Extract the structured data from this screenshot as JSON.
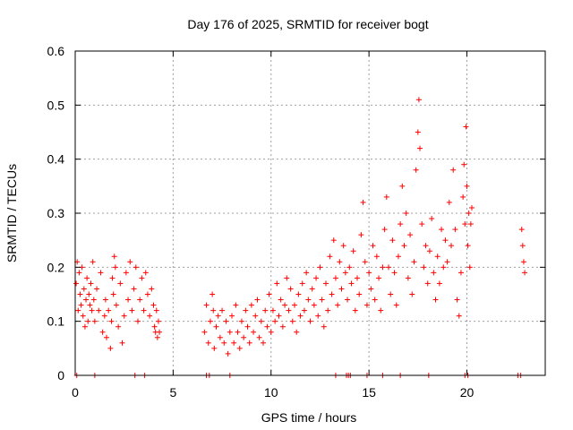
{
  "chart_data": {
    "type": "scatter",
    "title": "Day 176 of 2025, SRMTID for receiver bogt",
    "xlabel": "GPS time / hours",
    "ylabel": "SRMTID / TECUs",
    "xlim": [
      0,
      24
    ],
    "ylim": [
      0,
      0.6
    ],
    "xticks": [
      0,
      5,
      10,
      15,
      20
    ],
    "xtick_labels": [
      "0",
      "5",
      "10",
      "15",
      "20"
    ],
    "yticks": [
      0,
      0.1,
      0.2,
      0.3,
      0.4,
      0.5,
      0.6
    ],
    "ytick_labels": [
      "0",
      "0.1",
      "0.2",
      "0.3",
      "0.4",
      "0.5",
      "0.6"
    ],
    "grid": true,
    "marker": "+",
    "color": "#ff0000",
    "series": [
      {
        "name": "SRMTID",
        "points": [
          [
            0.05,
            0.17
          ],
          [
            0.1,
            0.21
          ],
          [
            0.15,
            0.12
          ],
          [
            0.2,
            0.19
          ],
          [
            0.25,
            0.15
          ],
          [
            0.3,
            0.13
          ],
          [
            0.35,
            0.2
          ],
          [
            0.4,
            0.11
          ],
          [
            0.45,
            0.16
          ],
          [
            0.5,
            0.09
          ],
          [
            0.55,
            0.14
          ],
          [
            0.6,
            0.18
          ],
          [
            0.65,
            0.1
          ],
          [
            0.7,
            0.15
          ],
          [
            0.75,
            0.13
          ],
          [
            0.8,
            0.17
          ],
          [
            0.85,
            0.12
          ],
          [
            0.9,
            0.21
          ],
          [
            0.95,
            0.14
          ],
          [
            1.0,
            0.1
          ],
          [
            1.1,
            0.16
          ],
          [
            1.2,
            0.12
          ],
          [
            1.3,
            0.19
          ],
          [
            1.4,
            0.08
          ],
          [
            1.5,
            0.11
          ],
          [
            1.55,
            0.14
          ],
          [
            1.6,
            0.07
          ],
          [
            1.7,
            0.12
          ],
          [
            1.8,
            0.05
          ],
          [
            1.85,
            0.1
          ],
          [
            1.9,
            0.18
          ],
          [
            1.95,
            0.15
          ],
          [
            2.0,
            0.22
          ],
          [
            2.05,
            0.2
          ],
          [
            2.1,
            0.13
          ],
          [
            2.2,
            0.09
          ],
          [
            2.3,
            0.17
          ],
          [
            2.4,
            0.06
          ],
          [
            2.5,
            0.11
          ],
          [
            2.6,
            0.19
          ],
          [
            2.7,
            0.14
          ],
          [
            2.8,
            0.21
          ],
          [
            2.9,
            0.12
          ],
          [
            3.0,
            0.16
          ],
          [
            3.1,
            0.2
          ],
          [
            3.2,
            0.1
          ],
          [
            3.3,
            0.14
          ],
          [
            3.4,
            0.18
          ],
          [
            3.5,
            0.12
          ],
          [
            3.6,
            0.19
          ],
          [
            3.7,
            0.15
          ],
          [
            3.8,
            0.11
          ],
          [
            3.9,
            0.16
          ],
          [
            4.0,
            0.13
          ],
          [
            4.05,
            0.09
          ],
          [
            4.1,
            0.08
          ],
          [
            4.15,
            0.12
          ],
          [
            4.2,
            0.07
          ],
          [
            4.25,
            0.1
          ],
          [
            4.3,
            0.08
          ],
          [
            6.6,
            0.08
          ],
          [
            6.7,
            0.13
          ],
          [
            6.8,
            0.06
          ],
          [
            6.9,
            0.1
          ],
          [
            7.0,
            0.15
          ],
          [
            7.05,
            0.12
          ],
          [
            7.1,
            0.05
          ],
          [
            7.2,
            0.09
          ],
          [
            7.3,
            0.11
          ],
          [
            7.4,
            0.07
          ],
          [
            7.5,
            0.12
          ],
          [
            7.6,
            0.06
          ],
          [
            7.7,
            0.1
          ],
          [
            7.8,
            0.04
          ],
          [
            7.9,
            0.08
          ],
          [
            8.0,
            0.11
          ],
          [
            8.1,
            0.06
          ],
          [
            8.2,
            0.13
          ],
          [
            8.3,
            0.08
          ],
          [
            8.4,
            0.05
          ],
          [
            8.5,
            0.1
          ],
          [
            8.6,
            0.07
          ],
          [
            8.7,
            0.12
          ],
          [
            8.8,
            0.09
          ],
          [
            8.9,
            0.06
          ],
          [
            9.0,
            0.13
          ],
          [
            9.1,
            0.08
          ],
          [
            9.2,
            0.11
          ],
          [
            9.3,
            0.14
          ],
          [
            9.4,
            0.07
          ],
          [
            9.5,
            0.1
          ],
          [
            9.6,
            0.06
          ],
          [
            9.7,
            0.12
          ],
          [
            9.8,
            0.09
          ],
          [
            9.9,
            0.15
          ],
          [
            10.0,
            0.08
          ],
          [
            10.1,
            0.12
          ],
          [
            10.2,
            0.1
          ],
          [
            10.3,
            0.17
          ],
          [
            10.4,
            0.11
          ],
          [
            10.5,
            0.14
          ],
          [
            10.6,
            0.09
          ],
          [
            10.7,
            0.13
          ],
          [
            10.8,
            0.18
          ],
          [
            10.9,
            0.12
          ],
          [
            11.0,
            0.16
          ],
          [
            11.1,
            0.1
          ],
          [
            11.2,
            0.13
          ],
          [
            11.3,
            0.08
          ],
          [
            11.4,
            0.15
          ],
          [
            11.5,
            0.11
          ],
          [
            11.6,
            0.17
          ],
          [
            11.7,
            0.12
          ],
          [
            11.8,
            0.19
          ],
          [
            11.9,
            0.14
          ],
          [
            12.0,
            0.1
          ],
          [
            12.1,
            0.16
          ],
          [
            12.2,
            0.13
          ],
          [
            12.3,
            0.18
          ],
          [
            12.4,
            0.11
          ],
          [
            12.5,
            0.2
          ],
          [
            12.6,
            0.14
          ],
          [
            12.7,
            0.09
          ],
          [
            12.8,
            0.17
          ],
          [
            12.9,
            0.12
          ],
          [
            13.0,
            0.22
          ],
          [
            13.1,
            0.15
          ],
          [
            13.2,
            0.25
          ],
          [
            13.3,
            0.18
          ],
          [
            13.4,
            0.13
          ],
          [
            13.5,
            0.21
          ],
          [
            13.6,
            0.16
          ],
          [
            13.7,
            0.24
          ],
          [
            13.8,
            0.19
          ],
          [
            13.9,
            0.14
          ],
          [
            14.0,
            0.2
          ],
          [
            14.1,
            0.17
          ],
          [
            14.2,
            0.23
          ],
          [
            14.3,
            0.12
          ],
          [
            14.4,
            0.18
          ],
          [
            14.5,
            0.15
          ],
          [
            14.6,
            0.26
          ],
          [
            14.7,
            0.32
          ],
          [
            14.8,
            0.21
          ],
          [
            14.9,
            0.13
          ],
          [
            15.0,
            0.19
          ],
          [
            15.1,
            0.16
          ],
          [
            15.2,
            0.24
          ],
          [
            15.3,
            0.14
          ],
          [
            15.4,
            0.22
          ],
          [
            15.5,
            0.18
          ],
          [
            15.6,
            0.12
          ],
          [
            15.7,
            0.2
          ],
          [
            15.8,
            0.27
          ],
          [
            15.9,
            0.33
          ],
          [
            16.0,
            0.2
          ],
          [
            16.1,
            0.15
          ],
          [
            16.2,
            0.25
          ],
          [
            16.3,
            0.19
          ],
          [
            16.4,
            0.13
          ],
          [
            16.5,
            0.22
          ],
          [
            16.6,
            0.28
          ],
          [
            16.7,
            0.35
          ],
          [
            16.8,
            0.24
          ],
          [
            16.9,
            0.3
          ],
          [
            17.0,
            0.18
          ],
          [
            17.1,
            0.26
          ],
          [
            17.2,
            0.15
          ],
          [
            17.3,
            0.21
          ],
          [
            17.4,
            0.38
          ],
          [
            17.5,
            0.45
          ],
          [
            17.55,
            0.51
          ],
          [
            17.6,
            0.42
          ],
          [
            17.7,
            0.28
          ],
          [
            17.8,
            0.2
          ],
          [
            17.9,
            0.24
          ],
          [
            18.0,
            0.17
          ],
          [
            18.1,
            0.23
          ],
          [
            18.2,
            0.29
          ],
          [
            18.3,
            0.19
          ],
          [
            18.4,
            0.14
          ],
          [
            18.5,
            0.22
          ],
          [
            18.6,
            0.17
          ],
          [
            18.7,
            0.27
          ],
          [
            18.8,
            0.2
          ],
          [
            18.9,
            0.25
          ],
          [
            19.0,
            0.21
          ],
          [
            19.1,
            0.32
          ],
          [
            19.2,
            0.24
          ],
          [
            19.3,
            0.38
          ],
          [
            19.4,
            0.27
          ],
          [
            19.5,
            0.14
          ],
          [
            19.6,
            0.11
          ],
          [
            19.7,
            0.19
          ],
          [
            19.8,
            0.33
          ],
          [
            19.85,
            0.39
          ],
          [
            19.9,
            0.28
          ],
          [
            19.95,
            0.46
          ],
          [
            20.0,
            0.35
          ],
          [
            20.05,
            0.24
          ],
          [
            20.1,
            0.3
          ],
          [
            20.15,
            0.2
          ],
          [
            20.2,
            0.28
          ],
          [
            20.25,
            0.31
          ],
          [
            22.8,
            0.27
          ],
          [
            22.85,
            0.24
          ],
          [
            22.9,
            0.21
          ],
          [
            22.95,
            0.19
          ],
          [
            0.08,
            0.0
          ],
          [
            1.0,
            0.0
          ],
          [
            3.05,
            0.0
          ],
          [
            3.55,
            0.0
          ],
          [
            6.7,
            0.0
          ],
          [
            6.85,
            0.0
          ],
          [
            7.9,
            0.0
          ],
          [
            13.3,
            0.0
          ],
          [
            13.85,
            0.0
          ],
          [
            13.95,
            0.0
          ],
          [
            14.05,
            0.0
          ],
          [
            14.9,
            0.0
          ],
          [
            15.7,
            0.0
          ],
          [
            16.6,
            0.0
          ],
          [
            18.05,
            0.0
          ],
          [
            19.9,
            0.0
          ],
          [
            20.05,
            0.0
          ],
          [
            22.6,
            0.0
          ],
          [
            22.75,
            0.0
          ]
        ]
      }
    ]
  }
}
